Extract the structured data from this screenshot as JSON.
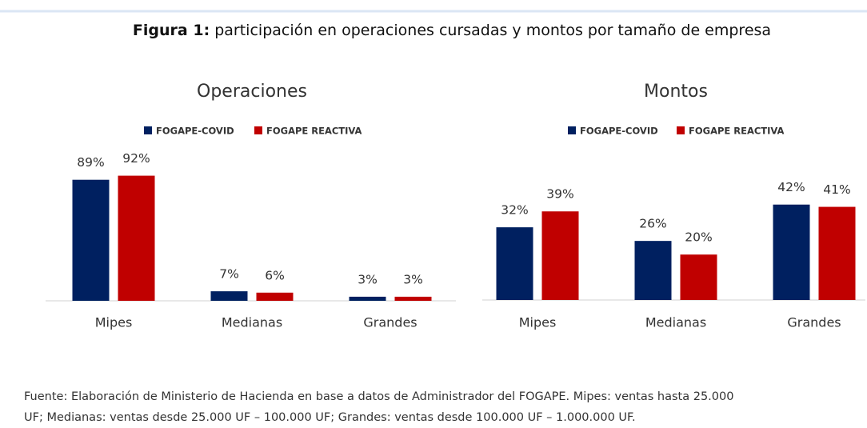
{
  "figure_title": {
    "label": "Figura 1:",
    "text": "participación en operaciones cursadas y montos por tamaño de empresa"
  },
  "chart_data": [
    {
      "type": "bar",
      "title": "Operaciones",
      "categories": [
        "Mipes",
        "Medianas",
        "Grandes"
      ],
      "series": [
        {
          "name": "FOGAPE-COVID",
          "color": "#002060",
          "values": [
            89,
            7,
            3
          ],
          "value_labels": [
            "89%",
            "7%",
            "3%"
          ]
        },
        {
          "name": "FOGAPE REACTIVA",
          "color": "#c00000",
          "values": [
            92,
            6,
            3
          ],
          "value_labels": [
            "92%",
            "6%",
            "3%"
          ]
        }
      ],
      "legend": "top"
    },
    {
      "type": "bar",
      "title": "Montos",
      "categories": [
        "Mipes",
        "Medianas",
        "Grandes"
      ],
      "series": [
        {
          "name": "FOGAPE-COVID",
          "color": "#002060",
          "values": [
            32,
            26,
            42
          ],
          "value_labels": [
            "32%",
            "26%",
            "42%"
          ]
        },
        {
          "name": "FOGAPE REACTIVA",
          "color": "#c00000",
          "values": [
            39,
            20,
            41
          ],
          "value_labels": [
            "39%",
            "20%",
            "41%"
          ]
        }
      ],
      "legend": "top"
    }
  ],
  "footnote": {
    "lines": [
      "Fuente: Elaboración de Ministerio de Hacienda en base a datos de Administrador del FOGAPE. Mipes: ventas hasta 25.000",
      "UF; Medianas: ventas desde 25.000 UF – 100.000 UF; Grandes: ventas desde 100.000 UF – 1.000.000 UF."
    ]
  }
}
